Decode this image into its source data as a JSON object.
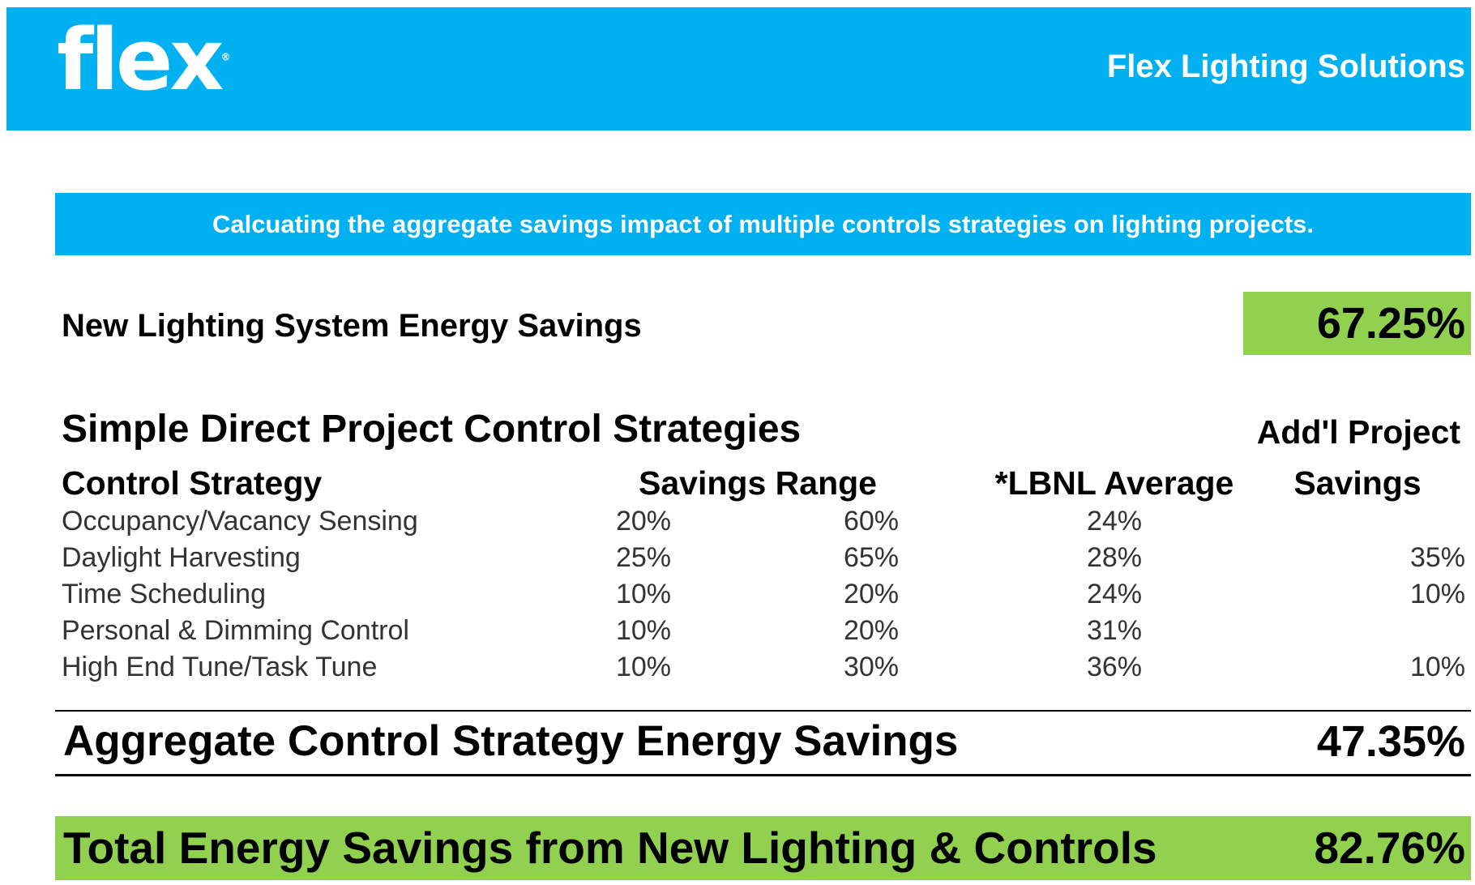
{
  "header": {
    "logo_text": "flex",
    "brand_title": "Flex Lighting Solutions",
    "color": "#00b0f0"
  },
  "subtitle": "Calcuating the aggregate savings impact of multiple controls strategies on lighting projects.",
  "new_lighting": {
    "label": "New Lighting System Energy Savings",
    "value": "67.25%",
    "highlight_color": "#92d050"
  },
  "section_title": "Simple Direct Project Control Strategies",
  "columns": {
    "strategy": "Control Strategy",
    "savings_range": "Savings Range",
    "lbnl": "*LBNL Average",
    "addl_line1": "Add'l Project",
    "addl_line2": "Savings"
  },
  "rows": [
    {
      "name": "Occupancy/Vacancy Sensing",
      "low": "20%",
      "high": "60%",
      "lbnl": "24%",
      "addl": ""
    },
    {
      "name": "Daylight Harvesting",
      "low": "25%",
      "high": "65%",
      "lbnl": "28%",
      "addl": "35%"
    },
    {
      "name": "Time Scheduling",
      "low": "10%",
      "high": "20%",
      "lbnl": "24%",
      "addl": "10%"
    },
    {
      "name": "Personal & Dimming Control",
      "low": "10%",
      "high": "20%",
      "lbnl": "31%",
      "addl": ""
    },
    {
      "name": "High End Tune/Task Tune",
      "low": "10%",
      "high": "30%",
      "lbnl": "36%",
      "addl": "10%"
    }
  ],
  "aggregate": {
    "label": "Aggregate Control Strategy Energy Savings",
    "value": "47.35%"
  },
  "total": {
    "label": "Total  Energy Savings from New Lighting  & Controls",
    "value": "82.76%"
  }
}
